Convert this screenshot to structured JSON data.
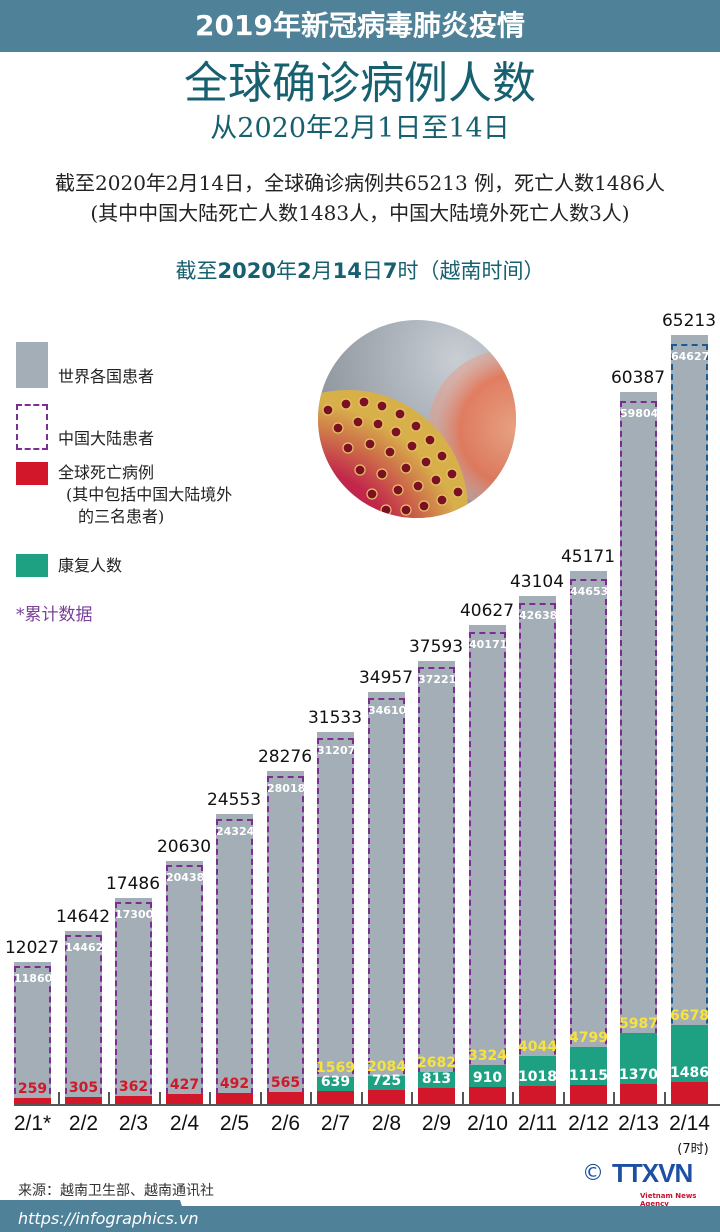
{
  "header": {
    "topic": "2019年新冠病毒肺炎疫情",
    "title": "全球确诊病例人数",
    "subtitle": "从2020年2月1日至14日"
  },
  "summary": {
    "line1": "截至2020年2月14日，全球确诊病例共65213 例，死亡人数1486人",
    "line2": "(其中中国大陆死亡人数1483人，中国大陆境外死亡人数3人)"
  },
  "as_of": {
    "p1": "截至",
    "year": "2020",
    "p2": "年",
    "month": "2",
    "p3": "月",
    "day": "14",
    "p4": "日",
    "hour": "7",
    "p5": "时（越南时间）"
  },
  "legend": {
    "world": "世界各国患者",
    "china": "中国大陆患者",
    "deaths": "全球死亡病例",
    "deaths_note1": "(其中包括中国大陆境外",
    "deaths_note2": "的三名患者)",
    "recovered": "康复人数",
    "cumulative_note": "*累计数据"
  },
  "colors": {
    "header_bg": "#4f8298",
    "title": "#17606f",
    "world": "#a3aeb6",
    "china_border": "#7b2d91",
    "china_border_latest": "#1c5b8f",
    "deaths": "#d3172a",
    "recovered": "#1ea083",
    "recovered_label": "#f8e23c"
  },
  "chart_data": {
    "type": "bar",
    "title": "全球确诊病例人数",
    "subtitle": "从2020年2月1日至14日",
    "categories": [
      "2/1*",
      "2/2",
      "2/3",
      "2/4",
      "2/5",
      "2/6",
      "2/7",
      "2/8",
      "2/9",
      "2/10",
      "2/11",
      "2/12",
      "2/13",
      "2/14"
    ],
    "last_category_note": "(7时)",
    "series": [
      {
        "name": "世界各国患者",
        "values": [
          12027,
          14642,
          17486,
          20630,
          24553,
          28276,
          31533,
          34957,
          37593,
          40627,
          43104,
          45171,
          60387,
          65213
        ]
      },
      {
        "name": "中国大陆患者",
        "values": [
          11860,
          14462,
          17300,
          20438,
          24324,
          28018,
          31207,
          34610,
          37221,
          40171,
          42638,
          44653,
          59804,
          64627
        ]
      },
      {
        "name": "康复人数",
        "values": [
          null,
          null,
          null,
          null,
          null,
          null,
          1569,
          2084,
          2682,
          3324,
          4044,
          4799,
          5987,
          6678
        ]
      },
      {
        "name": "全球死亡病例",
        "values": [
          259,
          305,
          362,
          427,
          492,
          565,
          639,
          725,
          813,
          910,
          1018,
          1115,
          1370,
          1486
        ]
      }
    ],
    "xlabel": "",
    "ylabel": "",
    "ylim": [
      0,
      65213
    ],
    "grid": false,
    "legend_position": "top-left"
  },
  "footer": {
    "source": "来源：越南卫生部、越南通讯社",
    "url": "https://infographics.vn",
    "logo_copyright": "©",
    "logo_text": "TTXVN",
    "logo_sub": "Vietnam News Agency"
  }
}
